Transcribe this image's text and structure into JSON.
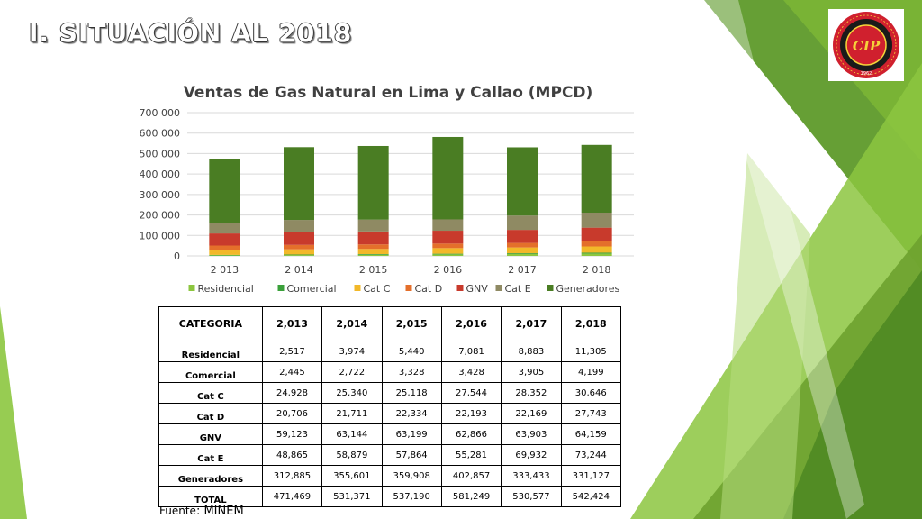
{
  "slide": {
    "title": "I. SITUACIÓN AL 2018",
    "logo": {
      "icon": "colegio-de-ingenieros-seal",
      "text": "COLEGIO DE INGENIEROS DEL PERU",
      "year": "1962",
      "monogram": "CIP"
    },
    "source_label": "Fuente",
    "source_value": ": MINEM"
  },
  "chart_data": {
    "type": "bar",
    "stacked": true,
    "title": "Ventas de Gas Natural en Lima y Callao (MPCD)",
    "categories": [
      "2 013",
      "2 014",
      "2 015",
      "2 016",
      "2 017",
      "2 018"
    ],
    "ylim": [
      0,
      700000
    ],
    "yticks": [
      "0",
      "100 000",
      "200 000",
      "300 000",
      "400 000",
      "500 000",
      "600 000",
      "700 000"
    ],
    "grid": true,
    "legend_position": "bottom",
    "series": [
      {
        "name": "Residencial",
        "color": "#8cc63f",
        "values": [
          2517,
          3974,
          5440,
          7081,
          8883,
          11305
        ]
      },
      {
        "name": "Comercial",
        "color": "#3aa03a",
        "values": [
          2445,
          2722,
          3328,
          3428,
          3905,
          4199
        ]
      },
      {
        "name": "Cat C",
        "color": "#f2b829",
        "values": [
          24928,
          25340,
          25118,
          27544,
          28352,
          30646
        ]
      },
      {
        "name": "Cat D",
        "color": "#e46f2b",
        "values": [
          20706,
          21711,
          22334,
          22193,
          22169,
          27743
        ]
      },
      {
        "name": "GNV",
        "color": "#c83a2c",
        "values": [
          59123,
          63144,
          63199,
          62866,
          63903,
          64159
        ]
      },
      {
        "name": "Cat E",
        "color": "#8f8a63",
        "values": [
          48865,
          58879,
          57864,
          55281,
          69932,
          73244
        ]
      },
      {
        "name": "Generadores",
        "color": "#4a7d23",
        "values": [
          312885,
          355601,
          359908,
          402857,
          333433,
          331127
        ]
      }
    ]
  },
  "table": {
    "headers": [
      "CATEGORIA",
      "2,013",
      "2,014",
      "2,015",
      "2,016",
      "2,017",
      "2,018"
    ],
    "rows": [
      [
        "Residencial",
        "2,517",
        "3,974",
        "5,440",
        "7,081",
        "8,883",
        "11,305"
      ],
      [
        "Comercial",
        "2,445",
        "2,722",
        "3,328",
        "3,428",
        "3,905",
        "4,199"
      ],
      [
        "Cat C",
        "24,928",
        "25,340",
        "25,118",
        "27,544",
        "28,352",
        "30,646"
      ],
      [
        "Cat D",
        "20,706",
        "21,711",
        "22,334",
        "22,193",
        "22,169",
        "27,743"
      ],
      [
        "GNV",
        "59,123",
        "63,144",
        "63,199",
        "62,866",
        "63,903",
        "64,159"
      ],
      [
        "Cat E",
        "48,865",
        "58,879",
        "57,864",
        "55,281",
        "69,932",
        "73,244"
      ],
      [
        "Generadores",
        "312,885",
        "355,601",
        "359,908",
        "402,857",
        "333,433",
        "331,127"
      ],
      [
        "TOTAL",
        "471,469",
        "531,371",
        "537,190",
        "581,249",
        "530,577",
        "542,424"
      ]
    ]
  },
  "colors": {
    "accent_green": "#8cc63f",
    "dark_green": "#4a7d23",
    "seal_red": "#d0202e"
  }
}
